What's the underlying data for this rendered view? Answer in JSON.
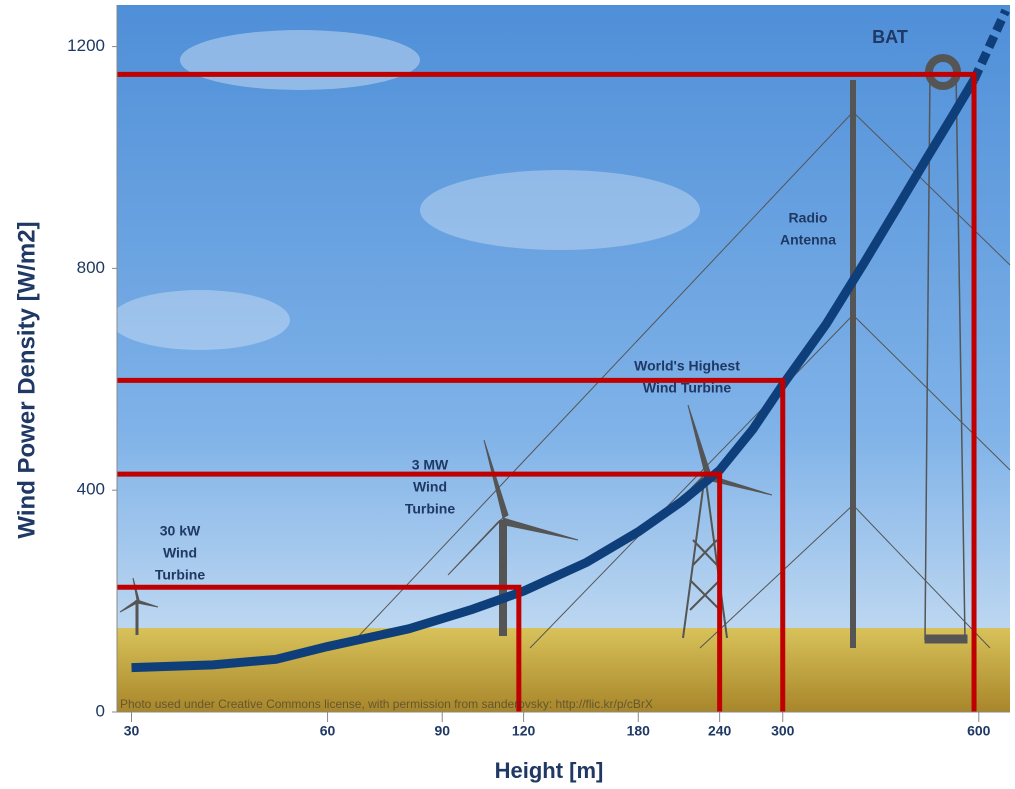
{
  "chart_data": {
    "type": "line",
    "ylabel": "Wind Power Density [W/m2]",
    "xlabel": "Height [m]",
    "xscale": "log",
    "xlim": [
      28.5,
      670
    ],
    "ylim": [
      0,
      1275
    ],
    "xticks": [
      30,
      60,
      90,
      120,
      180,
      240,
      300,
      600
    ],
    "yticks": [
      0,
      400,
      800,
      1200
    ],
    "curve": {
      "color": "#0f3f7a",
      "x": [
        30,
        40,
        50,
        60,
        80,
        100,
        120,
        150,
        180,
        210,
        240,
        270,
        300,
        350,
        400,
        450,
        500,
        550,
        590
      ],
      "y": [
        80,
        85,
        95,
        118,
        150,
        185,
        218,
        270,
        325,
        380,
        436,
        510,
        590,
        700,
        810,
        910,
        1000,
        1080,
        1140
      ]
    },
    "extension": {
      "x": [
        590,
        660
      ],
      "y": [
        1140,
        1265
      ]
    },
    "reference_color": "#c00000",
    "references": [
      {
        "x": 118,
        "y": 225
      },
      {
        "x": 240,
        "y": 429
      },
      {
        "x": 300,
        "y": 598
      },
      {
        "x": 590,
        "y": 1150
      }
    ],
    "annotations": [
      {
        "lines": [
          "30 kW",
          "Wind",
          "Turbine"
        ]
      },
      {
        "lines": [
          "3 MW",
          "Wind",
          "Turbine"
        ]
      },
      {
        "lines": [
          "World's Highest",
          "Wind Turbine"
        ]
      },
      {
        "lines": [
          "Radio",
          "Antenna"
        ]
      },
      {
        "lines": [
          "BAT"
        ]
      }
    ],
    "credit": "Photo used under Creative Commons license, with permission from sanderovsky: http://flic.kr/p/cBrX"
  }
}
